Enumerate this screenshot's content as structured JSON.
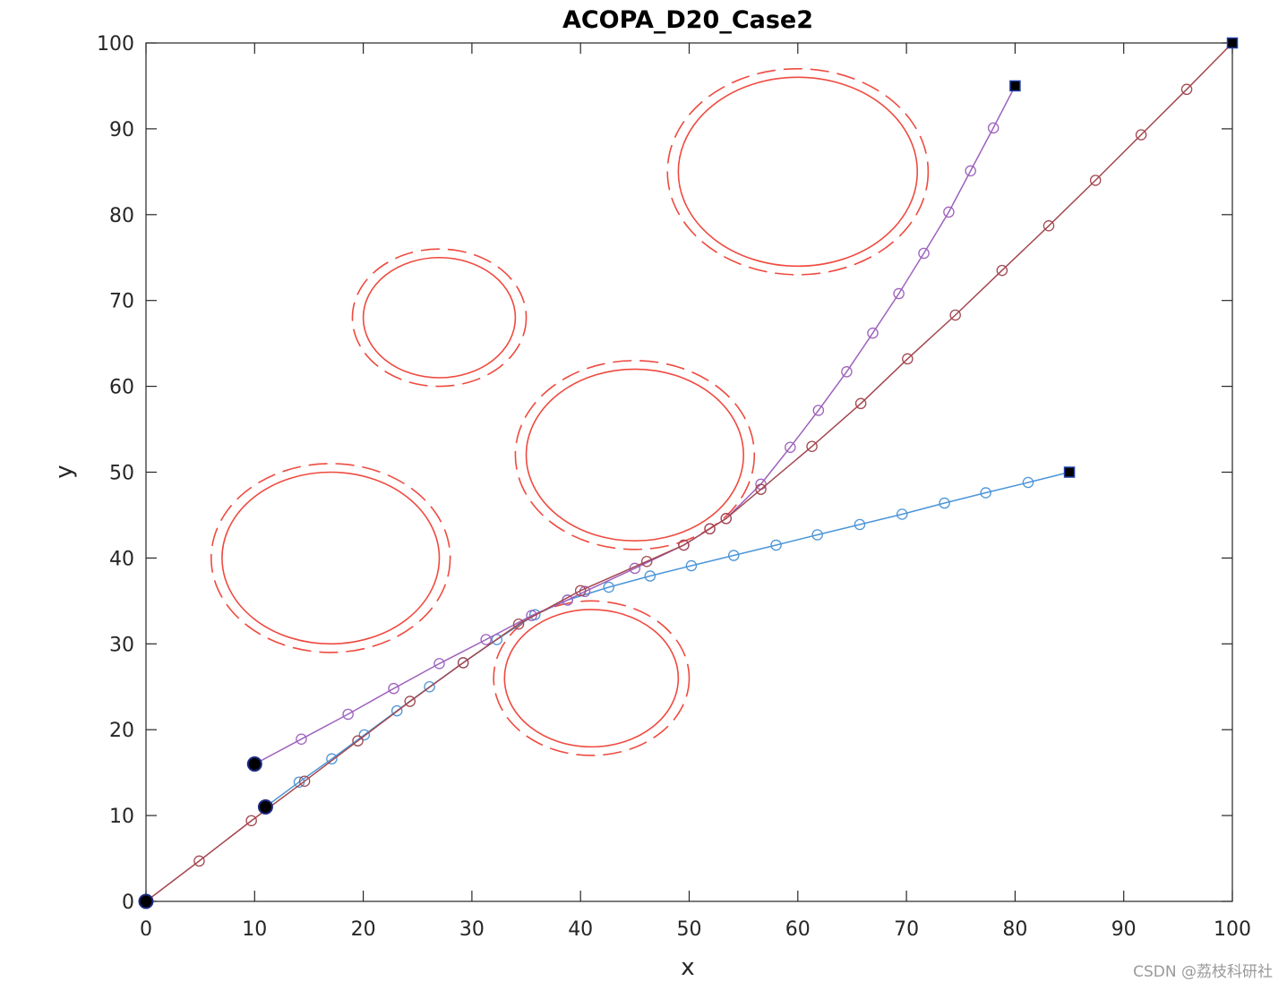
{
  "chart_data": {
    "type": "line",
    "title": "ACOPA_D20_Case2",
    "xlabel": "x",
    "ylabel": "y",
    "xlim": [
      0,
      100
    ],
    "ylim": [
      0,
      100
    ],
    "xticks": [
      0,
      10,
      20,
      30,
      40,
      50,
      60,
      70,
      80,
      90,
      100
    ],
    "yticks": [
      0,
      10,
      20,
      30,
      40,
      50,
      60,
      70,
      80,
      90,
      100
    ],
    "grid": false,
    "box": true,
    "series": [
      {
        "color": "#4b95d8",
        "points": [
          [
            11,
            11
          ],
          [
            14.1,
            13.9
          ],
          [
            17.1,
            16.6
          ],
          [
            20.1,
            19.4
          ],
          [
            23.1,
            22.2
          ],
          [
            26.1,
            25.0
          ],
          [
            29.2,
            27.8
          ],
          [
            32.3,
            30.5
          ],
          [
            35.8,
            33.4
          ],
          [
            38.8,
            35.1
          ],
          [
            42.6,
            36.6
          ],
          [
            46.4,
            37.9
          ],
          [
            50.2,
            39.1
          ],
          [
            54.1,
            40.3
          ],
          [
            58.0,
            41.5
          ],
          [
            61.8,
            42.7
          ],
          [
            65.7,
            43.9
          ],
          [
            69.6,
            45.1
          ],
          [
            73.5,
            46.4
          ],
          [
            77.3,
            47.6
          ],
          [
            81.2,
            48.8
          ],
          [
            85,
            50
          ]
        ]
      },
      {
        "color": "#9d62bd",
        "points": [
          [
            10,
            16
          ],
          [
            14.3,
            18.9
          ],
          [
            18.6,
            21.8
          ],
          [
            22.8,
            24.8
          ],
          [
            27.0,
            27.7
          ],
          [
            31.3,
            30.5
          ],
          [
            35.5,
            33.3
          ],
          [
            38.8,
            35.1
          ],
          [
            40.4,
            36.1
          ],
          [
            45.0,
            38.8
          ],
          [
            49.5,
            41.5
          ],
          [
            51.9,
            43.4
          ],
          [
            53.4,
            44.6
          ],
          [
            56.6,
            48.6
          ],
          [
            59.3,
            52.9
          ],
          [
            61.9,
            57.2
          ],
          [
            64.5,
            61.7
          ],
          [
            66.9,
            66.2
          ],
          [
            69.3,
            70.8
          ],
          [
            71.6,
            75.5
          ],
          [
            73.9,
            80.3
          ],
          [
            75.9,
            85.1
          ],
          [
            78.0,
            90.1
          ],
          [
            80,
            95
          ]
        ]
      },
      {
        "color": "#a3474f",
        "points": [
          [
            0,
            0
          ],
          [
            4.9,
            4.7
          ],
          [
            9.7,
            9.4
          ],
          [
            14.6,
            14.0
          ],
          [
            19.5,
            18.7
          ],
          [
            24.3,
            23.3
          ],
          [
            29.2,
            27.8
          ],
          [
            34.3,
            32.3
          ],
          [
            40.0,
            36.2
          ],
          [
            46.1,
            39.6
          ],
          [
            49.5,
            41.5
          ],
          [
            51.9,
            43.4
          ],
          [
            53.4,
            44.6
          ],
          [
            56.6,
            48.0
          ],
          [
            61.3,
            53.0
          ],
          [
            65.8,
            58.0
          ],
          [
            70.1,
            63.2
          ],
          [
            74.5,
            68.3
          ],
          [
            78.8,
            73.5
          ],
          [
            83.1,
            78.7
          ],
          [
            87.4,
            84.0
          ],
          [
            91.6,
            89.3
          ],
          [
            95.8,
            94.6
          ],
          [
            100,
            100
          ]
        ]
      }
    ],
    "start_marker": {
      "fill": "#000000",
      "edge": "#1c2a80"
    },
    "end_marker": {
      "fill": "#000000",
      "edge": "#1d3fa8"
    },
    "obstacles": {
      "color": "#ef4a3f",
      "circles": [
        {
          "center": [
            60,
            85
          ],
          "radius": 11,
          "outer_radius": 12
        },
        {
          "center": [
            27,
            68
          ],
          "radius": 7,
          "outer_radius": 8
        },
        {
          "center": [
            45,
            52
          ],
          "radius": 10,
          "outer_radius": 11
        },
        {
          "center": [
            17,
            40
          ],
          "radius": 10,
          "outer_radius": 11
        },
        {
          "center": [
            41,
            26
          ],
          "radius": 8,
          "outer_radius": 9
        }
      ]
    }
  },
  "watermark": "CSDN @荔枝科研社"
}
